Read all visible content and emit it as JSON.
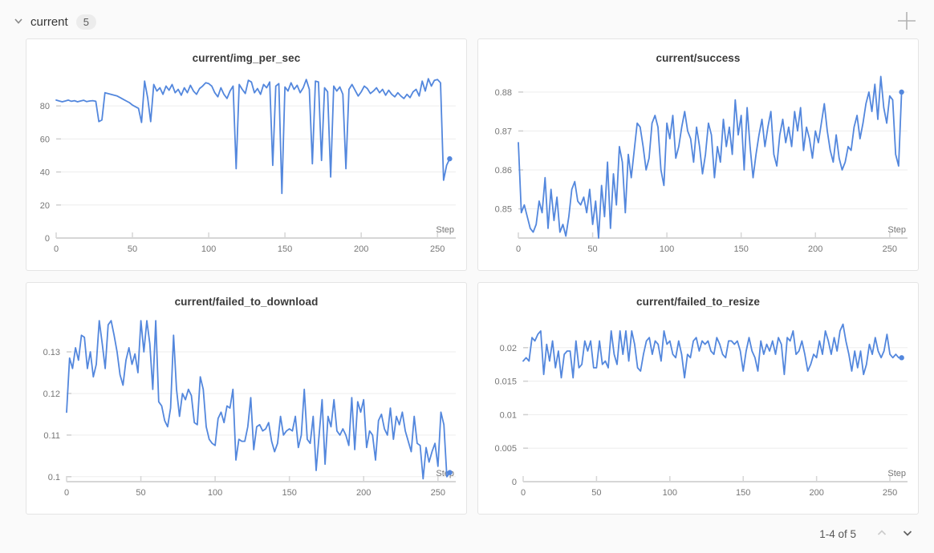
{
  "header": {
    "group_label": "current",
    "panel_count": "5",
    "collapse_icon": "chevron-down-icon",
    "add_icon": "plus-icon"
  },
  "pagination": {
    "label": "1-4 of 5",
    "prev_icon": "chevron-up-icon",
    "next_icon": "chevron-down-icon"
  },
  "colors": {
    "line": "#5387dd",
    "grid": "#ededed",
    "axis": "#d6d6d6",
    "tick_text": "#767676",
    "panel_border": "#e4e4e4",
    "page_bg": "#fafafa"
  },
  "chart_data": [
    {
      "type": "line",
      "title": "current/img_per_sec",
      "xlabel": "Step",
      "xlim": [
        0,
        262
      ],
      "ylim": [
        0,
        99
      ],
      "xtick_values": [
        0,
        50,
        100,
        150,
        200,
        250
      ],
      "xtick_labels": [
        "0",
        "50",
        "100",
        "150",
        "200",
        "250"
      ],
      "ytick_values": [
        0,
        20,
        40,
        60,
        80
      ],
      "ytick_labels": [
        "0",
        "20",
        "40",
        "60",
        "80"
      ],
      "x_start": 0,
      "x_step": 2,
      "end_dot": true,
      "values": [
        83.5,
        83,
        82.5,
        83,
        83.5,
        82.8,
        83.2,
        82.5,
        83,
        83.4,
        82.6,
        83,
        83.2,
        82.8,
        70.5,
        71.5,
        88,
        87.5,
        87,
        86.5,
        86,
        85,
        84,
        83,
        82,
        80.5,
        79.5,
        78.5,
        70,
        95,
        85,
        70.5,
        93,
        89,
        91,
        87,
        92,
        89.5,
        93,
        88,
        90,
        86.5,
        91,
        88,
        92.5,
        89,
        87,
        90.5,
        92,
        94,
        93.5,
        92,
        88,
        85.5,
        91,
        87,
        84.5,
        89,
        92,
        42,
        93,
        90,
        87.5,
        95.5,
        94.5,
        88,
        90.5,
        87,
        93,
        91,
        94.5,
        44,
        92,
        93.5,
        27,
        91.5,
        89,
        94,
        90,
        92.5,
        88,
        91,
        96,
        90,
        45,
        95,
        94.5,
        47,
        91,
        88.5,
        37,
        92,
        89,
        91.5,
        87,
        42,
        90,
        93,
        89.5,
        86,
        88.5,
        92,
        90.5,
        87.5,
        89,
        91,
        88,
        90,
        86.5,
        89.5,
        87,
        85.5,
        88,
        86,
        84.5,
        87,
        85,
        88.5,
        90,
        86,
        95,
        89,
        96.5,
        92,
        95.5,
        96,
        94,
        35,
        44,
        48
      ]
    },
    {
      "type": "line",
      "title": "current/success",
      "xlabel": "Step",
      "xlim": [
        0,
        262
      ],
      "ylim": [
        0.8425,
        0.8845
      ],
      "xtick_values": [
        0,
        50,
        100,
        150,
        200,
        250
      ],
      "xtick_labels": [
        "0",
        "50",
        "100",
        "150",
        "200",
        "250"
      ],
      "ytick_values": [
        0.85,
        0.86,
        0.87,
        0.88
      ],
      "ytick_labels": [
        "0.85",
        "0.86",
        "0.87",
        "0.88"
      ],
      "x_start": 0,
      "x_step": 2,
      "end_dot": true,
      "values": [
        0.867,
        0.849,
        0.851,
        0.848,
        0.845,
        0.844,
        0.846,
        0.852,
        0.849,
        0.858,
        0.845,
        0.855,
        0.847,
        0.853,
        0.844,
        0.846,
        0.843,
        0.848,
        0.855,
        0.857,
        0.852,
        0.851,
        0.853,
        0.849,
        0.855,
        0.846,
        0.852,
        0.8425,
        0.856,
        0.848,
        0.862,
        0.845,
        0.859,
        0.851,
        0.866,
        0.862,
        0.849,
        0.864,
        0.858,
        0.865,
        0.872,
        0.871,
        0.866,
        0.86,
        0.863,
        0.872,
        0.874,
        0.871,
        0.86,
        0.856,
        0.872,
        0.868,
        0.874,
        0.863,
        0.866,
        0.871,
        0.875,
        0.87,
        0.868,
        0.862,
        0.871,
        0.866,
        0.859,
        0.864,
        0.872,
        0.869,
        0.858,
        0.866,
        0.862,
        0.873,
        0.866,
        0.871,
        0.864,
        0.878,
        0.869,
        0.874,
        0.86,
        0.876,
        0.866,
        0.858,
        0.864,
        0.869,
        0.873,
        0.866,
        0.871,
        0.875,
        0.864,
        0.861,
        0.869,
        0.873,
        0.867,
        0.871,
        0.866,
        0.875,
        0.87,
        0.876,
        0.865,
        0.871,
        0.868,
        0.863,
        0.87,
        0.867,
        0.872,
        0.877,
        0.87,
        0.865,
        0.862,
        0.869,
        0.863,
        0.86,
        0.862,
        0.866,
        0.865,
        0.871,
        0.874,
        0.868,
        0.872,
        0.877,
        0.88,
        0.875,
        0.882,
        0.873,
        0.884,
        0.876,
        0.872,
        0.879,
        0.878,
        0.864,
        0.861,
        0.88
      ]
    },
    {
      "type": "line",
      "title": "current/failed_to_download",
      "xlabel": "Step",
      "xlim": [
        0,
        262
      ],
      "ylim": [
        0.0988,
        0.1381
      ],
      "xtick_values": [
        0,
        50,
        100,
        150,
        200,
        250
      ],
      "xtick_labels": [
        "0",
        "50",
        "100",
        "150",
        "200",
        "250"
      ],
      "ytick_values": [
        0.1,
        0.11,
        0.12,
        0.13
      ],
      "ytick_labels": [
        "0.1",
        "0.11",
        "0.12",
        "0.13"
      ],
      "x_start": 0,
      "x_step": 2,
      "end_dot": true,
      "values": [
        0.1155,
        0.1285,
        0.126,
        0.131,
        0.128,
        0.134,
        0.1335,
        0.126,
        0.13,
        0.124,
        0.127,
        0.1375,
        0.132,
        0.126,
        0.1365,
        0.1375,
        0.134,
        0.13,
        0.1245,
        0.122,
        0.128,
        0.131,
        0.127,
        0.1295,
        0.125,
        0.1375,
        0.13,
        0.1375,
        0.132,
        0.121,
        0.1375,
        0.118,
        0.117,
        0.1135,
        0.112,
        0.1165,
        0.134,
        0.121,
        0.1145,
        0.12,
        0.1185,
        0.121,
        0.1195,
        0.113,
        0.1125,
        0.124,
        0.121,
        0.112,
        0.109,
        0.108,
        0.1075,
        0.114,
        0.1155,
        0.113,
        0.117,
        0.1165,
        0.121,
        0.104,
        0.109,
        0.1085,
        0.1085,
        0.112,
        0.119,
        0.1065,
        0.112,
        0.1125,
        0.111,
        0.1115,
        0.113,
        0.1085,
        0.106,
        0.108,
        0.1145,
        0.11,
        0.111,
        0.1115,
        0.111,
        0.1145,
        0.107,
        0.11,
        0.121,
        0.109,
        0.108,
        0.1145,
        0.1015,
        0.11,
        0.1185,
        0.103,
        0.1145,
        0.112,
        0.1185,
        0.111,
        0.11,
        0.1115,
        0.11,
        0.1075,
        0.119,
        0.1065,
        0.118,
        0.1155,
        0.1185,
        0.107,
        0.111,
        0.11,
        0.104,
        0.1135,
        0.115,
        0.1115,
        0.11,
        0.1165,
        0.109,
        0.1145,
        0.1125,
        0.1155,
        0.111,
        0.1085,
        0.106,
        0.1145,
        0.108,
        0.1075,
        0.0995,
        0.107,
        0.1035,
        0.106,
        0.108,
        0.1025,
        0.1155,
        0.1125,
        0.1,
        0.101
      ]
    },
    {
      "type": "line",
      "title": "current/failed_to_resize",
      "xlabel": "Step",
      "xlim": [
        0,
        262
      ],
      "ylim": [
        0,
        0.0244
      ],
      "xtick_values": [
        0,
        50,
        100,
        150,
        200,
        250
      ],
      "xtick_labels": [
        "0",
        "50",
        "100",
        "150",
        "200",
        "250"
      ],
      "ytick_values": [
        0,
        0.005,
        0.01,
        0.015,
        0.02
      ],
      "ytick_labels": [
        "0",
        "0.005",
        "0.01",
        "0.015",
        "0.02"
      ],
      "x_start": 0,
      "x_step": 2,
      "end_dot": true,
      "values": [
        0.018,
        0.0185,
        0.018,
        0.0215,
        0.021,
        0.022,
        0.0225,
        0.016,
        0.0205,
        0.018,
        0.021,
        0.017,
        0.0195,
        0.0155,
        0.019,
        0.0195,
        0.0195,
        0.0155,
        0.021,
        0.017,
        0.0175,
        0.021,
        0.0195,
        0.021,
        0.017,
        0.017,
        0.021,
        0.0175,
        0.018,
        0.017,
        0.0225,
        0.019,
        0.0175,
        0.0225,
        0.019,
        0.0225,
        0.018,
        0.0225,
        0.0205,
        0.017,
        0.0165,
        0.019,
        0.021,
        0.0215,
        0.019,
        0.021,
        0.0205,
        0.018,
        0.0225,
        0.0205,
        0.021,
        0.019,
        0.0185,
        0.021,
        0.019,
        0.0155,
        0.019,
        0.0185,
        0.021,
        0.0215,
        0.0195,
        0.021,
        0.0205,
        0.021,
        0.0195,
        0.019,
        0.0215,
        0.0205,
        0.019,
        0.0185,
        0.021,
        0.021,
        0.0205,
        0.021,
        0.0195,
        0.0165,
        0.0195,
        0.0215,
        0.0195,
        0.0185,
        0.0165,
        0.021,
        0.019,
        0.0205,
        0.0195,
        0.021,
        0.019,
        0.0215,
        0.0205,
        0.016,
        0.0215,
        0.021,
        0.0225,
        0.019,
        0.0195,
        0.021,
        0.019,
        0.0165,
        0.0175,
        0.019,
        0.0185,
        0.021,
        0.019,
        0.0225,
        0.021,
        0.019,
        0.0215,
        0.0195,
        0.0225,
        0.0235,
        0.021,
        0.019,
        0.0165,
        0.0195,
        0.017,
        0.0195,
        0.016,
        0.0175,
        0.0205,
        0.019,
        0.0215,
        0.0195,
        0.0185,
        0.0195,
        0.022,
        0.019,
        0.0185,
        0.019,
        0.0185,
        0.0185
      ]
    }
  ]
}
